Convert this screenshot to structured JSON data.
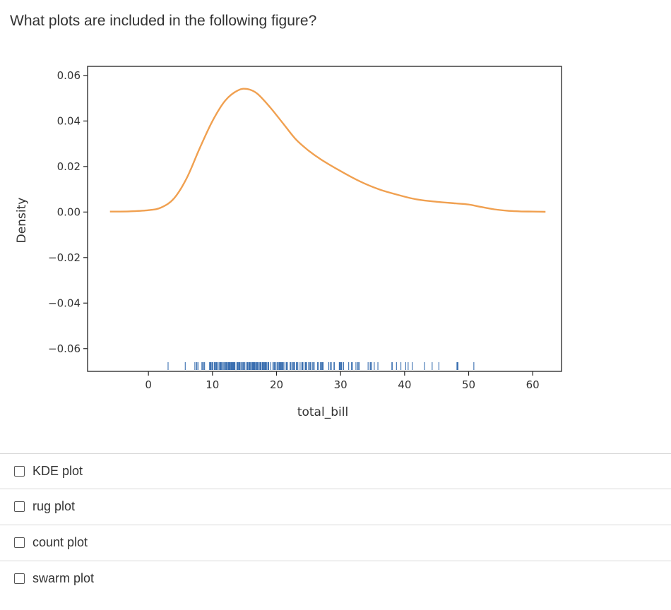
{
  "question": "What plots are included in the following figure?",
  "chart_data": {
    "type": "line",
    "xlabel": "total_bill",
    "ylabel": "Density",
    "xlim": [
      -9.5,
      64.5
    ],
    "ylim": [
      -0.07,
      0.064
    ],
    "xticks": [
      0,
      10,
      20,
      30,
      40,
      50,
      60
    ],
    "yticks": [
      0.06,
      0.04,
      0.02,
      0.0,
      -0.02,
      -0.04,
      -0.06
    ],
    "ytick_labels": [
      "0.06",
      "0.04",
      "0.02",
      "0.00",
      "−0.02",
      "−0.04",
      "−0.06"
    ],
    "grid": false,
    "kde_color": "#f0a050",
    "rug_color": "#3a6fb0",
    "kde": {
      "x": [
        -6,
        -3,
        0,
        2,
        4,
        6,
        8,
        10,
        12,
        14,
        15.5,
        17,
        19,
        21,
        23,
        25,
        27,
        30,
        33,
        36,
        39,
        42,
        45,
        48,
        50,
        52,
        54,
        56,
        58,
        60,
        62
      ],
      "y": [
        0.0002,
        0.0003,
        0.0008,
        0.002,
        0.006,
        0.015,
        0.028,
        0.04,
        0.049,
        0.0535,
        0.054,
        0.052,
        0.046,
        0.039,
        0.032,
        0.027,
        0.023,
        0.018,
        0.0135,
        0.01,
        0.0075,
        0.0055,
        0.0045,
        0.0038,
        0.0033,
        0.0022,
        0.0012,
        0.0006,
        0.0003,
        0.0002,
        0.0001
      ]
    },
    "rug": [
      3.07,
      5.75,
      7.25,
      7.51,
      7.56,
      7.74,
      8.35,
      8.51,
      8.52,
      8.58,
      8.77,
      9.55,
      9.6,
      9.68,
      9.78,
      9.94,
      10.07,
      10.29,
      10.33,
      10.34,
      10.51,
      10.59,
      10.63,
      10.65,
      10.77,
      11.02,
      11.17,
      11.24,
      11.35,
      11.38,
      11.59,
      11.61,
      11.69,
      11.87,
      12.02,
      12.03,
      12.16,
      12.26,
      12.43,
      12.46,
      12.48,
      12.54,
      12.6,
      12.66,
      12.69,
      12.74,
      12.76,
      12.9,
      13.0,
      13.03,
      13.13,
      13.16,
      13.27,
      13.28,
      13.37,
      13.39,
      13.42,
      13.51,
      13.81,
      13.94,
      14.07,
      14.15,
      14.26,
      14.31,
      14.48,
      14.52,
      14.73,
      14.78,
      14.83,
      15.01,
      15.04,
      15.06,
      15.36,
      15.38,
      15.42,
      15.48,
      15.53,
      15.69,
      15.77,
      15.81,
      15.95,
      15.98,
      16.0,
      16.04,
      16.21,
      16.27,
      16.29,
      16.31,
      16.4,
      16.43,
      16.45,
      16.47,
      16.49,
      16.58,
      16.66,
      16.82,
      16.93,
      16.97,
      16.99,
      17.07,
      17.26,
      17.29,
      17.31,
      17.46,
      17.47,
      17.51,
      17.59,
      17.78,
      17.81,
      17.82,
      17.89,
      17.92,
      18.04,
      18.15,
      18.24,
      18.26,
      18.28,
      18.29,
      18.35,
      18.43,
      18.64,
      18.69,
      18.71,
      18.78,
      19.08,
      19.44,
      19.49,
      19.65,
      19.77,
      19.81,
      19.82,
      20.08,
      20.23,
      20.27,
      20.29,
      20.45,
      20.49,
      20.53,
      20.65,
      20.69,
      20.76,
      20.9,
      20.92,
      21.01,
      21.16,
      21.5,
      21.58,
      21.7,
      22.12,
      22.23,
      22.42,
      22.49,
      22.67,
      22.75,
      22.76,
      22.82,
      23.1,
      23.17,
      23.33,
      23.68,
      23.95,
      24.01,
      24.06,
      24.08,
      24.27,
      24.52,
      24.55,
      24.59,
      24.71,
      25.0,
      25.21,
      25.28,
      25.29,
      25.56,
      25.71,
      25.89,
      26.41,
      26.59,
      26.86,
      26.88,
      27.05,
      27.18,
      27.2,
      27.28,
      28.15,
      28.17,
      28.44,
      28.55,
      28.97,
      29.03,
      29.8,
      29.85,
      29.93,
      30.06,
      30.14,
      30.4,
      30.46,
      31.27,
      31.71,
      31.85,
      32.4,
      32.68,
      32.83,
      32.9,
      34.3,
      34.63,
      34.65,
      34.81,
      34.83,
      35.26,
      35.83,
      38.01,
      38.07,
      38.73,
      39.42,
      40.17,
      40.55,
      41.19,
      43.11,
      44.3,
      45.35,
      48.17,
      48.27,
      48.33,
      50.81
    ]
  },
  "options": [
    {
      "label": "KDE plot"
    },
    {
      "label": "rug plot"
    },
    {
      "label": "count plot"
    },
    {
      "label": "swarm plot"
    }
  ]
}
